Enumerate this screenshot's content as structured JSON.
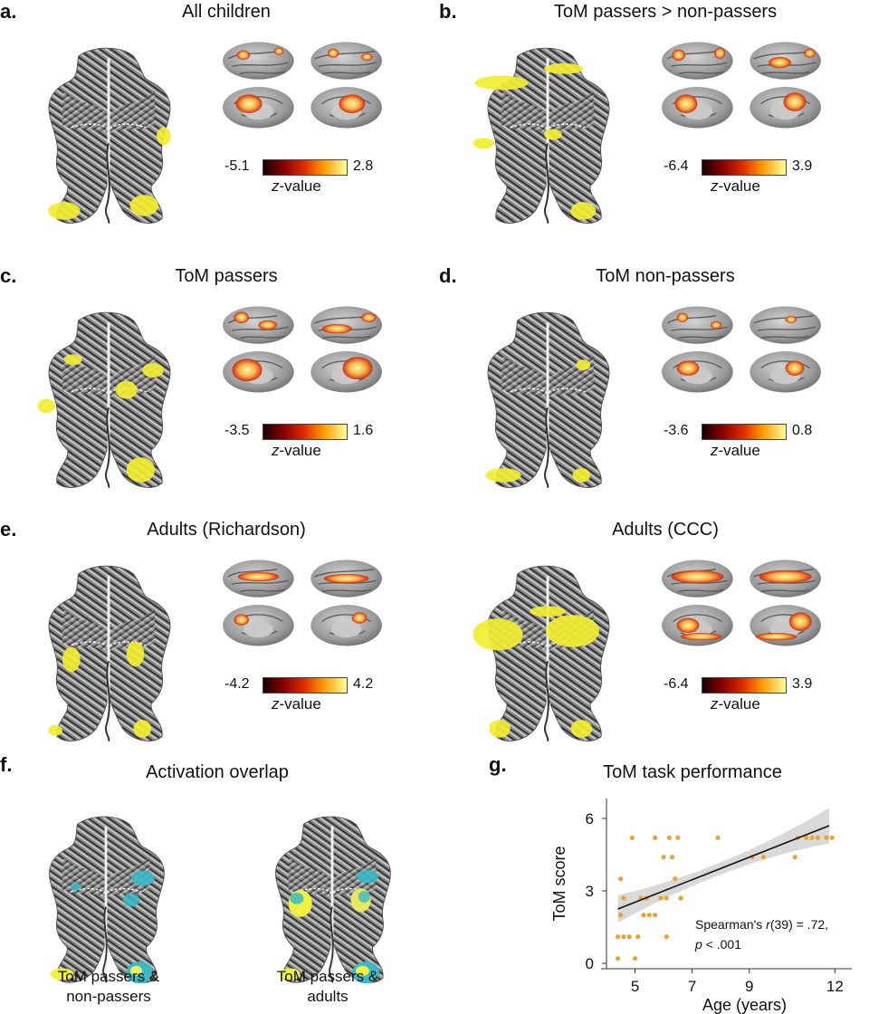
{
  "panels": [
    {
      "label": "a.",
      "title": "All children",
      "zmin": "-5.1",
      "zmax": "2.8",
      "zlabel_prefix": "z",
      "zlabel_suffix": "-value"
    },
    {
      "label": "b.",
      "title": "ToM passers > non-passers",
      "zmin": "-6.4",
      "zmax": "3.9",
      "zlabel_prefix": "z",
      "zlabel_suffix": "-value"
    },
    {
      "label": "c.",
      "title": "ToM passers",
      "zmin": "-3.5",
      "zmax": "1.6",
      "zlabel_prefix": "z",
      "zlabel_suffix": "-value"
    },
    {
      "label": "d.",
      "title": "ToM non-passers",
      "zmin": "-3.6",
      "zmax": "0.8",
      "zlabel_prefix": "z",
      "zlabel_suffix": "-value"
    },
    {
      "label": "e.",
      "title": "Adults (Richardson)",
      "zmin": "-4.2",
      "zmax": "4.2",
      "zlabel_prefix": "z",
      "zlabel_suffix": "-value"
    },
    {
      "label": "",
      "title": "Adults (CCC)",
      "zmin": "-6.4",
      "zmax": "3.9",
      "zlabel_prefix": "z",
      "zlabel_suffix": "-value"
    }
  ],
  "overlap": {
    "label": "f.",
    "title": "Activation overlap",
    "left_caption_1": "ToM passers &",
    "left_caption_2": "non-passers",
    "right_caption_1": "ToM passers &",
    "right_caption_2": "adults"
  },
  "chart_data": {
    "type": "scatter",
    "label": "g.",
    "title": "ToM task performance",
    "xlabel": "Age (years)",
    "ylabel": "ToM score",
    "xlim": [
      4.0,
      12.4
    ],
    "ylim": [
      0,
      6.6
    ],
    "xticks": [
      "5",
      "7",
      "9",
      "12"
    ],
    "xtick_values": [
      5,
      7,
      9,
      12
    ],
    "yticks": [
      "0",
      "3",
      "6"
    ],
    "ytick_values": [
      0,
      3,
      6
    ],
    "annotation_1_pre": "Spearman's ",
    "annotation_1_italic": "r",
    "annotation_1_post": "(39) = .72,",
    "annotation_2_italic": "p",
    "annotation_2_post": " < .001",
    "point_color": "#f0a030",
    "fit": {
      "x": [
        4.4,
        11.8
      ],
      "y": [
        2.25,
        5.7
      ]
    },
    "points": [
      {
        "x": 4.4,
        "y": 0.2
      },
      {
        "x": 4.4,
        "y": 1.1
      },
      {
        "x": 4.5,
        "y": 3.5
      },
      {
        "x": 4.5,
        "y": 2.0
      },
      {
        "x": 4.6,
        "y": 1.1
      },
      {
        "x": 4.6,
        "y": 2.7
      },
      {
        "x": 4.8,
        "y": 1.1
      },
      {
        "x": 4.9,
        "y": 5.2
      },
      {
        "x": 5.0,
        "y": 0.2
      },
      {
        "x": 5.1,
        "y": 1.1
      },
      {
        "x": 5.2,
        "y": 2.7
      },
      {
        "x": 5.3,
        "y": 2.0
      },
      {
        "x": 5.4,
        "y": 2.7
      },
      {
        "x": 5.5,
        "y": 2.0
      },
      {
        "x": 5.7,
        "y": 2.0
      },
      {
        "x": 5.7,
        "y": 5.2
      },
      {
        "x": 5.9,
        "y": 2.7
      },
      {
        "x": 6.0,
        "y": 4.4
      },
      {
        "x": 6.1,
        "y": 1.1
      },
      {
        "x": 6.1,
        "y": 2.7
      },
      {
        "x": 6.2,
        "y": 5.2
      },
      {
        "x": 6.3,
        "y": 4.4
      },
      {
        "x": 6.4,
        "y": 3.5
      },
      {
        "x": 6.5,
        "y": 5.2
      },
      {
        "x": 6.6,
        "y": 2.7
      },
      {
        "x": 7.9,
        "y": 5.2
      },
      {
        "x": 9.1,
        "y": 4.4
      },
      {
        "x": 9.5,
        "y": 4.4
      },
      {
        "x": 10.6,
        "y": 4.4
      },
      {
        "x": 10.7,
        "y": 5.2
      },
      {
        "x": 11.0,
        "y": 5.2
      },
      {
        "x": 11.2,
        "y": 5.2
      },
      {
        "x": 11.4,
        "y": 5.2
      },
      {
        "x": 11.7,
        "y": 5.2
      },
      {
        "x": 11.9,
        "y": 5.2
      }
    ]
  }
}
